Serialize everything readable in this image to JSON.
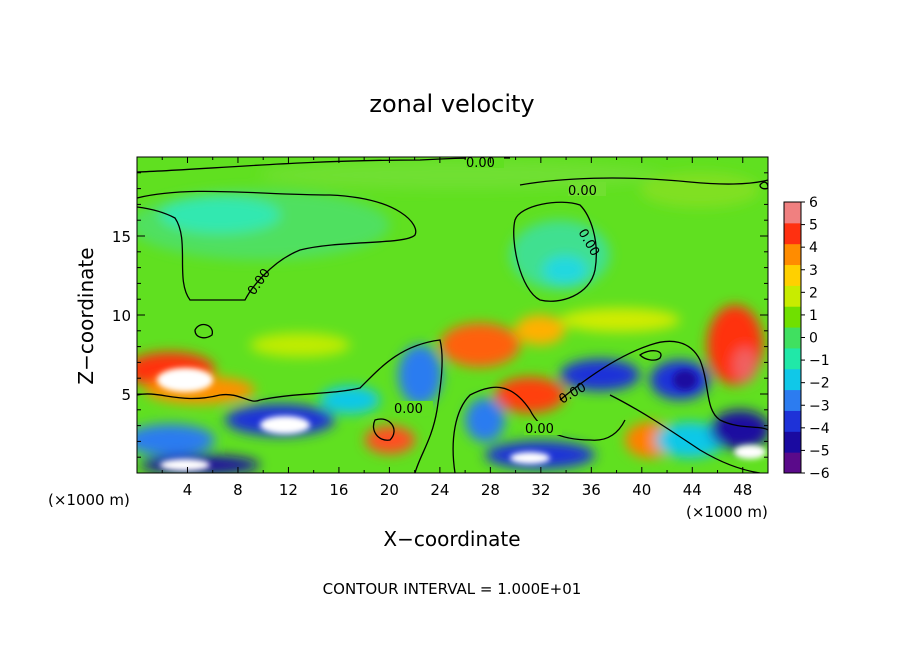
{
  "chart_data": {
    "type": "heatmap",
    "title": "zonal velocity",
    "xlabel": "X−coordinate",
    "ylabel": "Z−coordinate",
    "x_unit_left": "(×1000 m)",
    "x_unit_right": "(×1000 m)",
    "footer": "CONTOUR INTERVAL = 1.000E+01",
    "xlim": [
      0,
      50
    ],
    "ylim": [
      0,
      20
    ],
    "x_ticks": [
      4,
      8,
      12,
      16,
      20,
      24,
      28,
      32,
      36,
      40,
      44,
      48
    ],
    "x_tick_labels": [
      "4",
      "8",
      "12",
      "16",
      "20",
      "24",
      "28",
      "32",
      "36",
      "40",
      "44",
      "48"
    ],
    "y_ticks": [
      5,
      10,
      15
    ],
    "y_tick_labels": [
      "5",
      "10",
      "15"
    ],
    "colorbar": {
      "min": -6,
      "max": 6,
      "ticks": [
        6,
        5,
        4,
        3,
        2,
        1,
        0,
        -1,
        -2,
        -3,
        -4,
        -5,
        -6
      ],
      "tick_labels": [
        "6",
        "5",
        "4",
        "3",
        "2",
        "1",
        "0",
        "−1",
        "−2",
        "−3",
        "−4",
        "−5",
        "−6"
      ],
      "colors": [
        "#5a0a8a",
        "#1a0aa0",
        "#1e32d8",
        "#2c7cf0",
        "#10c8e8",
        "#20e8a8",
        "#40e060",
        "#70e000",
        "#c8ec00",
        "#ffd000",
        "#ff8c00",
        "#ff3010",
        "#f08080"
      ]
    },
    "contour_labels": [
      "0.00",
      "0.00",
      "0.00",
      "0.00",
      "0.00",
      "0.00",
      "0.00"
    ],
    "grid": false,
    "legend": "colorbar at right"
  }
}
